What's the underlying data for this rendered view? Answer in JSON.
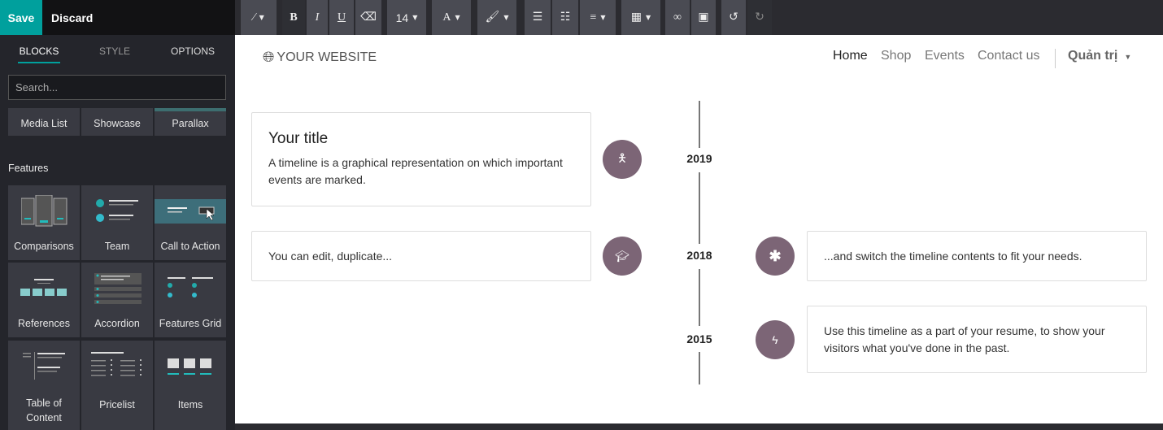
{
  "editor": {
    "save_label": "Save",
    "discard_label": "Discard",
    "tabs": [
      {
        "label": "BLOCKS"
      },
      {
        "label": "STYLE"
      },
      {
        "label": "OPTIONS"
      }
    ],
    "search_placeholder": "Search...",
    "snippets_top": [
      {
        "label": "Media List"
      },
      {
        "label": "Showcase"
      },
      {
        "label": "Parallax"
      }
    ],
    "features_label": "Features",
    "features": [
      {
        "label": "Comparisons"
      },
      {
        "label": "Team"
      },
      {
        "label": "Call to Action"
      },
      {
        "label": "References"
      },
      {
        "label": "Accordion"
      },
      {
        "label": "Features Grid"
      },
      {
        "label": "Table of Content"
      },
      {
        "label": "Pricelist"
      },
      {
        "label": "Items"
      }
    ],
    "toolbar": {
      "font_size": "14",
      "font_color_glyph": "A",
      "bold": "B",
      "italic": "I",
      "underline": "U"
    }
  },
  "site": {
    "logo": "YOUR WEBSITE",
    "nav": [
      {
        "label": "Home"
      },
      {
        "label": "Shop"
      },
      {
        "label": "Events"
      },
      {
        "label": "Contact us"
      }
    ],
    "admin_label": "Quản trị"
  },
  "timeline": {
    "years": [
      "2019",
      "2018",
      "2015"
    ],
    "entries": [
      {
        "title": "Your title",
        "text": "A timeline is a graphical representation on which important events are marked.",
        "icon": "child-icon"
      },
      {
        "text": "You can edit, duplicate...",
        "icon": "graduation-cap-icon"
      },
      {
        "text": "...and switch the timeline contents to fit your needs.",
        "icon": "asterisk-icon"
      },
      {
        "text": "Use this timeline as a part of your resume, to show your visitors what you've done in the past.",
        "icon": "bolt-icon"
      }
    ],
    "accent_color": "#7c6576"
  },
  "colors": {
    "primary": "#00a09d"
  }
}
